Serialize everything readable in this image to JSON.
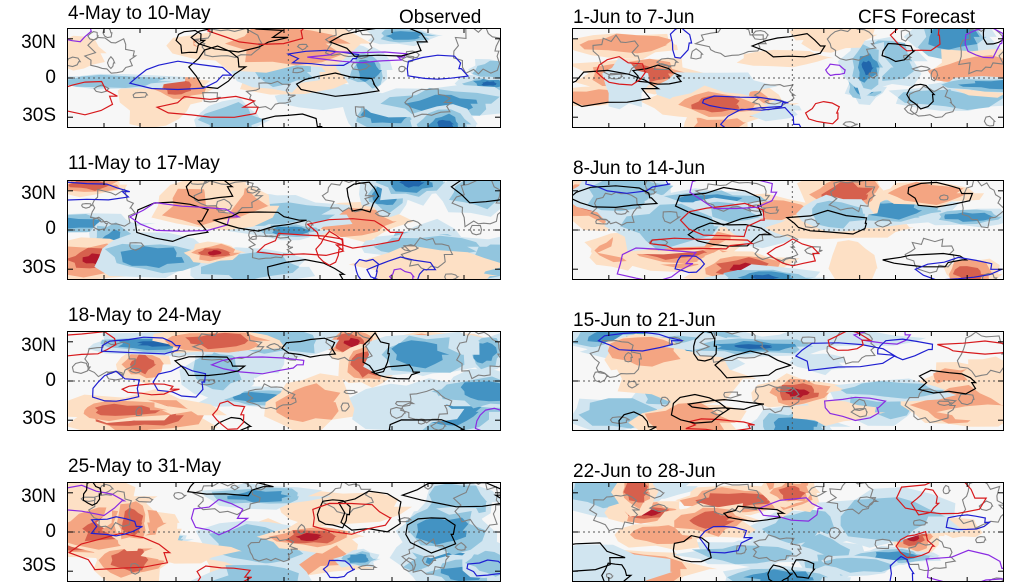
{
  "headers": {
    "left": "Observed",
    "right": "CFS Forecast"
  },
  "lat_labels": [
    "30N",
    "0",
    "30S"
  ],
  "panels": [
    {
      "title": "4-May to 10-May"
    },
    {
      "title": "11-May to 17-May"
    },
    {
      "title": "18-May to 24-May"
    },
    {
      "title": "25-May to 31-May"
    },
    {
      "title": "1-Jun to 7-Jun"
    },
    {
      "title": "8-Jun to 14-Jun"
    },
    {
      "title": "15-Jun to 21-Jun"
    },
    {
      "title": "22-Jun to 28-Jun"
    }
  ],
  "colors": {
    "positive": [
      "#fde0c5",
      "#f4a582",
      "#d6604d",
      "#b2182b",
      "#8b0a1a"
    ],
    "negative": [
      "#d1e5f0",
      "#92c5de",
      "#4393c3",
      "#2166ac",
      "#0b3c6e"
    ],
    "contour_black": "#000000",
    "contour_red": "#d7191c",
    "contour_blue": "#1f1fd1",
    "contour_purple": "#8a2be2",
    "land": "#808080"
  }
}
